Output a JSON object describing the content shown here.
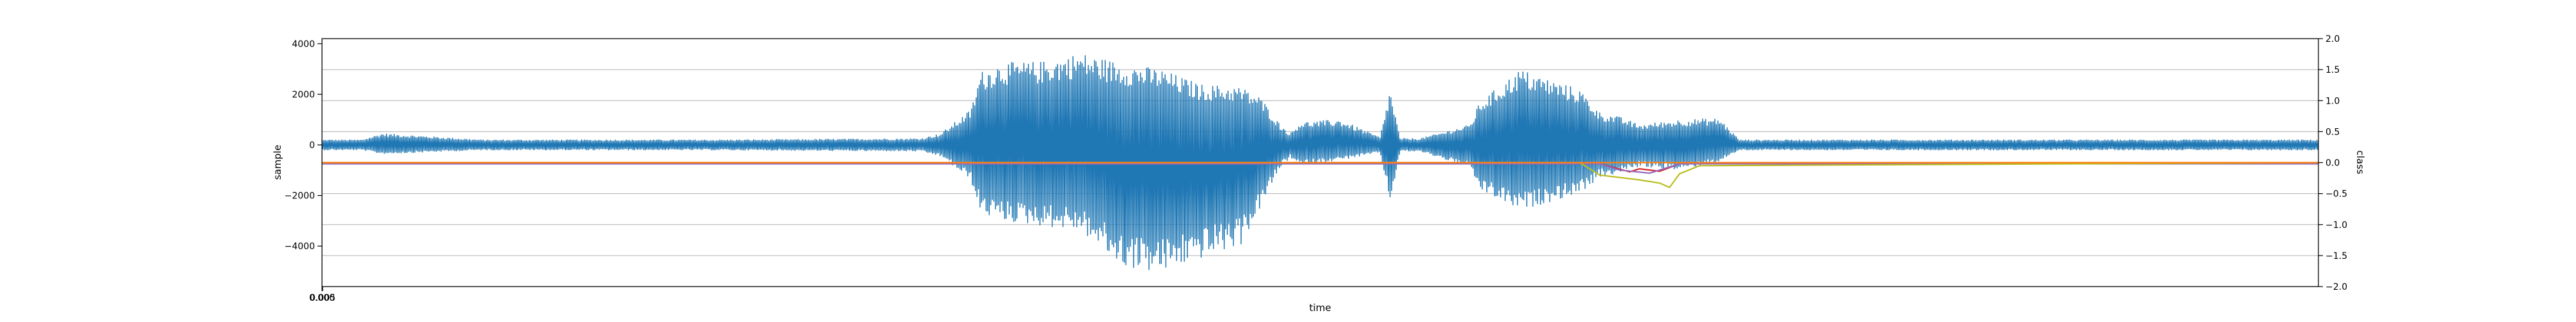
{
  "chart_data": {
    "type": "line",
    "xlabel": "time",
    "ylabel": "sample",
    "y2label": "class",
    "x_tick_labels": [
      "0.000",
      "0.005"
    ],
    "ylim": [
      -5600,
      4200
    ],
    "yticks": [
      -4000,
      -2000,
      0,
      2000,
      4000
    ],
    "y2lim": [
      -2.0,
      2.0
    ],
    "y2ticks": [
      "2.0",
      "1.5",
      "1.0",
      "0.5",
      "0.0",
      "−0.5",
      "−1.0",
      "−1.5",
      "−2.0"
    ],
    "grid": "horizontal",
    "x_range": [
      0,
      1
    ],
    "series": [
      {
        "role": "waveform",
        "axis": "left",
        "color": "#1f77b4",
        "envelope": {
          "x": [
            0.0,
            0.02,
            0.03,
            0.08,
            0.2,
            0.3,
            0.31,
            0.325,
            0.33,
            0.34,
            0.36,
            0.38,
            0.4,
            0.42,
            0.44,
            0.46,
            0.47,
            0.48,
            0.485,
            0.49,
            0.51,
            0.53,
            0.535,
            0.54,
            0.545,
            0.55,
            0.575,
            0.58,
            0.6,
            0.63,
            0.64,
            0.65,
            0.66,
            0.68,
            0.7,
            0.71,
            0.72,
            0.75,
            1.0
          ],
          "max": [
            200,
            200,
            450,
            200,
            200,
            250,
            450,
            1400,
            2900,
            3250,
            3300,
            3650,
            3250,
            3000,
            2400,
            2300,
            1900,
            800,
            450,
            900,
            1000,
            300,
            2200,
            250,
            250,
            250,
            800,
            1700,
            3000,
            2200,
            1300,
            1100,
            800,
            1000,
            1050,
            200,
            200,
            200,
            200
          ],
          "min": [
            -200,
            -200,
            -350,
            -200,
            -200,
            -250,
            -450,
            -1400,
            -2700,
            -3000,
            -3200,
            -3400,
            -4800,
            -5100,
            -4500,
            -4000,
            -2500,
            -900,
            -500,
            -800,
            -600,
            -300,
            -2300,
            -250,
            -250,
            -250,
            -900,
            -1800,
            -2600,
            -1900,
            -1300,
            -1100,
            -850,
            -1000,
            -650,
            -200,
            -200,
            -200,
            -200
          ]
        }
      },
      {
        "role": "class",
        "axis": "right",
        "color": "#d62728",
        "x": [
          0.0,
          0.64,
          0.645,
          0.655,
          0.66,
          0.67,
          0.68,
          1.0
        ],
        "y": [
          -0.02,
          -0.02,
          -0.06,
          -0.15,
          -0.1,
          -0.14,
          -0.02,
          -0.02
        ]
      },
      {
        "role": "class",
        "axis": "right",
        "color": "#9467bd",
        "x": [
          0.0,
          0.64,
          0.65,
          0.665,
          0.68,
          1.0
        ],
        "y": [
          -0.02,
          -0.02,
          -0.12,
          -0.17,
          -0.02,
          -0.02
        ]
      },
      {
        "role": "class",
        "axis": "right",
        "color": "#bcbd22",
        "x": [
          0.0,
          0.63,
          0.64,
          0.66,
          0.67,
          0.675,
          0.68,
          0.69,
          1.0
        ],
        "y": [
          0.0,
          0.0,
          -0.2,
          -0.28,
          -0.33,
          -0.4,
          -0.18,
          -0.05,
          0.0
        ]
      },
      {
        "role": "class",
        "axis": "right",
        "color": "#ff7f0e",
        "x": [
          0.0,
          1.0
        ],
        "y": [
          0.0,
          0.0
        ]
      }
    ]
  }
}
